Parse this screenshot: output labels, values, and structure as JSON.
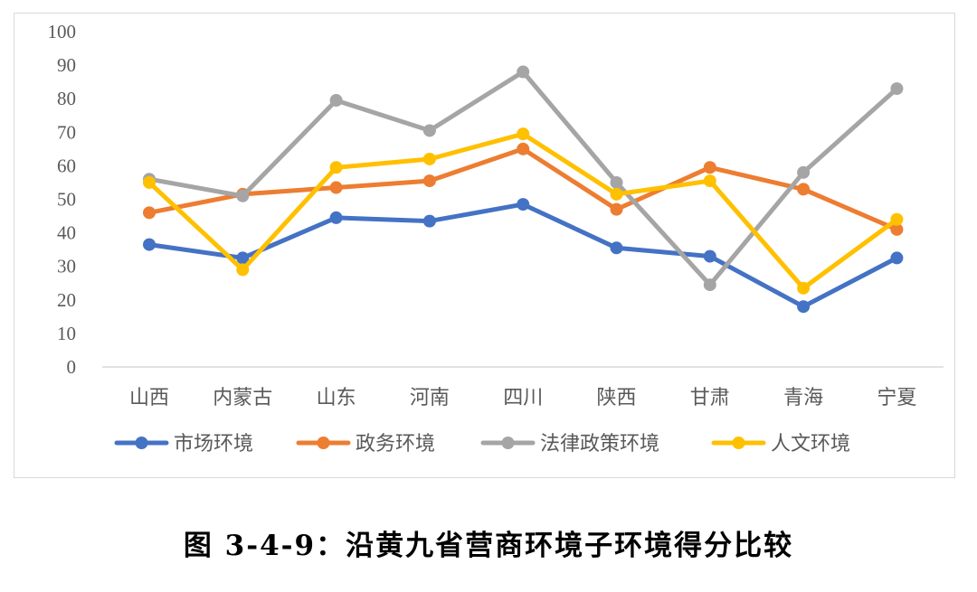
{
  "caption": "图 3-4-9：沿黄九省营商环境子环境得分比较",
  "chart_data": {
    "type": "line",
    "title": "",
    "xlabel": "",
    "ylabel": "",
    "ylim": [
      0,
      100
    ],
    "yticks": [
      0,
      10,
      20,
      30,
      40,
      50,
      60,
      70,
      80,
      90,
      100
    ],
    "grid": false,
    "legend": "bottom",
    "categories": [
      "山西",
      "内蒙古",
      "山东",
      "河南",
      "四川",
      "陕西",
      "甘肃",
      "青海",
      "宁夏"
    ],
    "series": [
      {
        "name": "市场环境",
        "color": "#4472C4",
        "values": [
          36.5,
          32.5,
          44.5,
          43.5,
          48.5,
          35.5,
          33,
          18,
          32.5
        ]
      },
      {
        "name": "政务环境",
        "color": "#ED7D31",
        "values": [
          46,
          51.5,
          53.5,
          55.5,
          65,
          47,
          59.5,
          53,
          41
        ]
      },
      {
        "name": "法律政策环境",
        "color": "#A5A5A5",
        "values": [
          56,
          51,
          79.5,
          70.5,
          88,
          55,
          24.5,
          58,
          83
        ]
      },
      {
        "name": "人文环境",
        "color": "#FFC000",
        "values": [
          55,
          29,
          59.5,
          62,
          69.5,
          51.5,
          55.5,
          23.5,
          44
        ]
      }
    ]
  }
}
